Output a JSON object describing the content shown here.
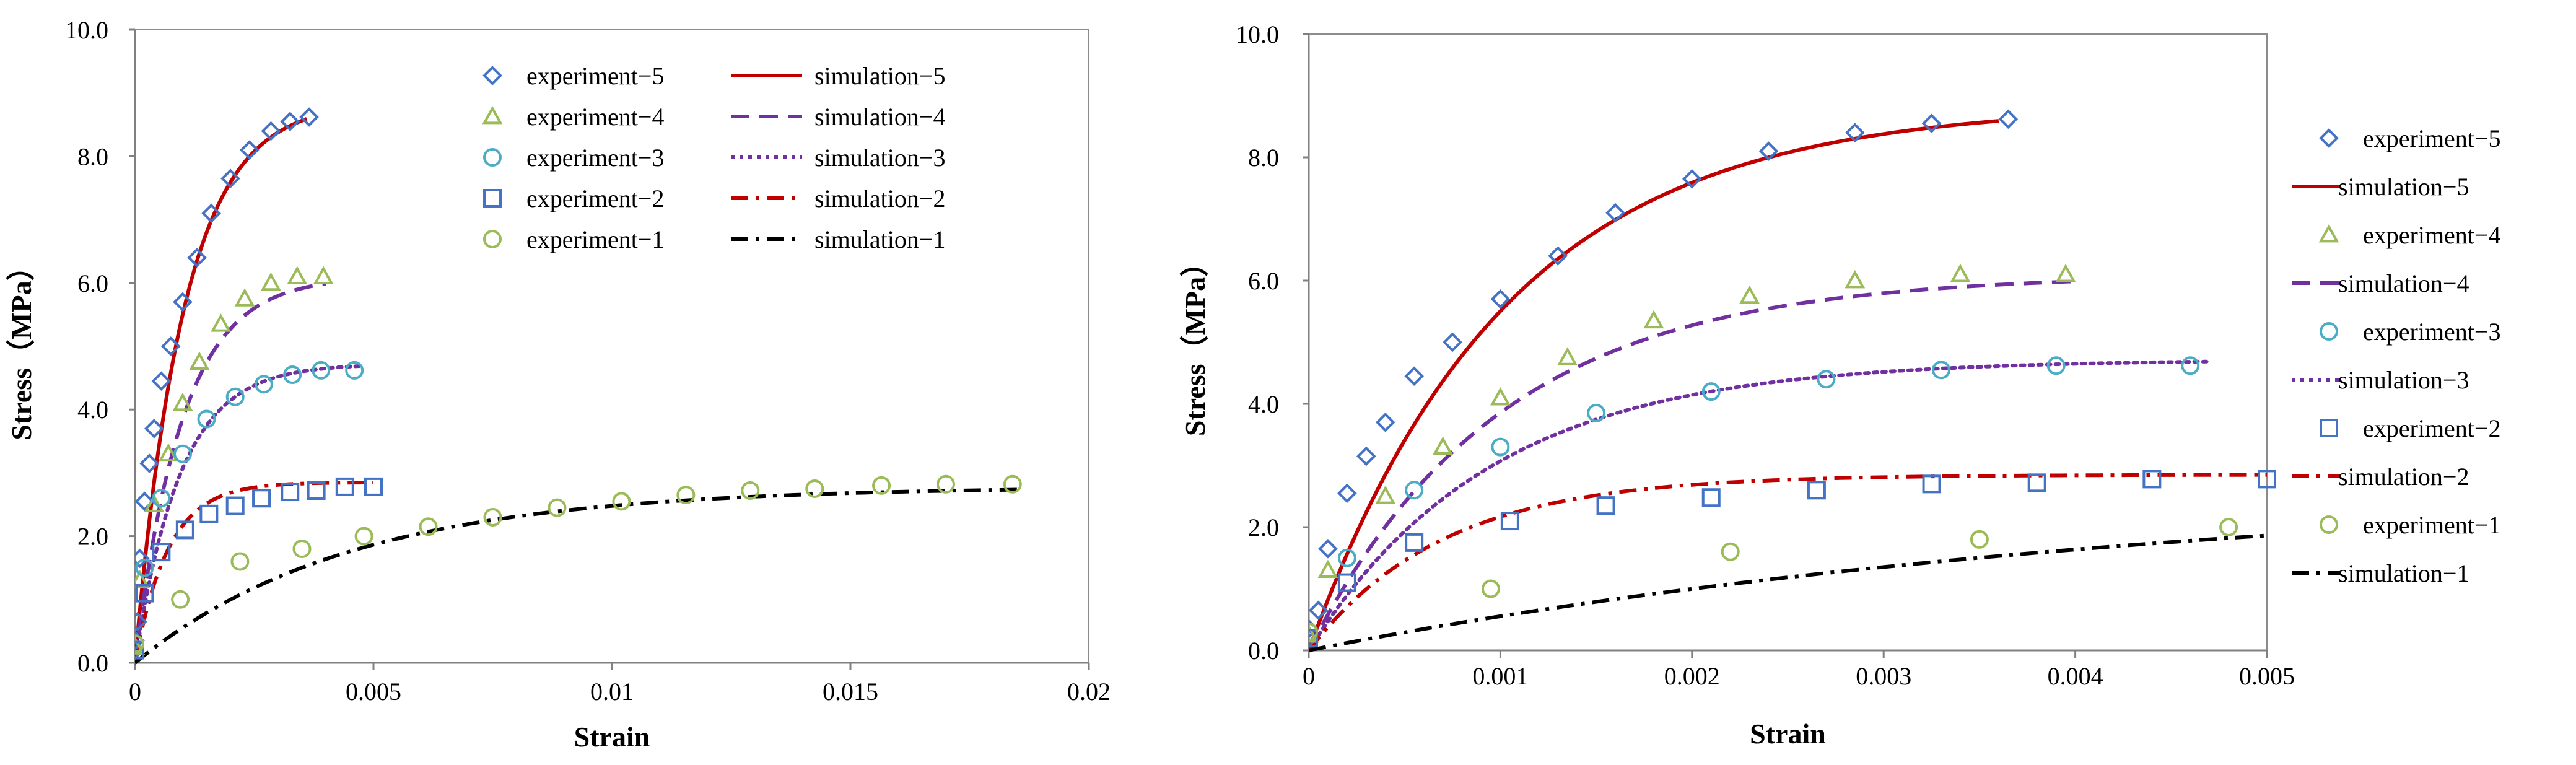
{
  "chart_data": [
    {
      "type": "scatter",
      "name": "full-range",
      "xlabel": "Strain",
      "ylabel": "Stress（MPa）",
      "xlim": [
        0,
        0.02
      ],
      "ylim": [
        0,
        10
      ],
      "xticks": [
        0,
        0.005,
        0.01,
        0.015,
        0.02
      ],
      "xtick_labels": [
        "0",
        "0.005",
        "0.01",
        "0.015",
        "0.02"
      ],
      "yticks": [
        0,
        2,
        4,
        6,
        8,
        10
      ],
      "ytick_labels": [
        "0.0",
        "2.0",
        "4.0",
        "6.0",
        "8.0",
        "10.0"
      ],
      "legend_position": "top-right, two columns",
      "legend_order": [
        "experiment−5",
        "simulation−5",
        "experiment−4",
        "simulation−4",
        "experiment−3",
        "simulation−3",
        "experiment−2",
        "simulation−2",
        "experiment−1",
        "simulation−1"
      ],
      "grid": false
    },
    {
      "type": "scatter",
      "name": "zoomed",
      "xlabel": "Strain",
      "ylabel": "Stress（MPa）",
      "xlim": [
        0,
        0.005
      ],
      "ylim": [
        0,
        10
      ],
      "xticks": [
        0,
        0.001,
        0.002,
        0.003,
        0.004,
        0.005
      ],
      "xtick_labels": [
        "0",
        "0.001",
        "0.002",
        "0.003",
        "0.004",
        "0.005"
      ],
      "yticks": [
        0,
        2,
        4,
        6,
        8,
        10
      ],
      "ytick_labels": [
        "0.0",
        "2.0",
        "4.0",
        "6.0",
        "8.0",
        "10.0"
      ],
      "legend_position": "right, outside plot",
      "legend_order": [
        "experiment−5",
        "simulation−5",
        "experiment−4",
        "simulation−4",
        "experiment−3",
        "simulation−3",
        "experiment−2",
        "simulation−2",
        "experiment−1",
        "simulation−1"
      ],
      "grid": false
    }
  ],
  "series": {
    "experiment": [
      {
        "name": "experiment−5",
        "marker": "diamond",
        "color": "#4472C4",
        "points": [
          [
            0.0,
            0.2
          ],
          [
            0.0,
            0.35
          ],
          [
            5e-05,
            0.65
          ],
          [
            0.0001,
            1.65
          ],
          [
            0.0002,
            2.55
          ],
          [
            0.0003,
            3.15
          ],
          [
            0.0004,
            3.7
          ],
          [
            0.00055,
            4.45
          ],
          [
            0.00075,
            5.0
          ],
          [
            0.001,
            5.7
          ],
          [
            0.0013,
            6.4
          ],
          [
            0.0016,
            7.1
          ],
          [
            0.002,
            7.65
          ],
          [
            0.0024,
            8.1
          ],
          [
            0.00285,
            8.4
          ],
          [
            0.00325,
            8.55
          ],
          [
            0.00365,
            8.62
          ]
        ]
      },
      {
        "name": "experiment−4",
        "marker": "triangle",
        "color": "#9BBB59",
        "points": [
          [
            0.0,
            0.25
          ],
          [
            0.0001,
            1.3
          ],
          [
            0.0004,
            2.5
          ],
          [
            0.0007,
            3.3
          ],
          [
            0.001,
            4.1
          ],
          [
            0.00135,
            4.75
          ],
          [
            0.0018,
            5.35
          ],
          [
            0.0023,
            5.75
          ],
          [
            0.00285,
            6.0
          ],
          [
            0.0034,
            6.1
          ],
          [
            0.00395,
            6.1
          ]
        ]
      },
      {
        "name": "experiment−3",
        "marker": "circle",
        "color": "#4BACC6",
        "points": [
          [
            0.0,
            0.3
          ],
          [
            0.0002,
            1.5
          ],
          [
            0.00055,
            2.6
          ],
          [
            0.001,
            3.3
          ],
          [
            0.0015,
            3.85
          ],
          [
            0.0021,
            4.2
          ],
          [
            0.0027,
            4.4
          ],
          [
            0.0033,
            4.55
          ],
          [
            0.0039,
            4.62
          ],
          [
            0.0046,
            4.62
          ]
        ]
      },
      {
        "name": "experiment−2",
        "marker": "square",
        "color": "#4472C4",
        "points": [
          [
            0.0,
            0.2
          ],
          [
            0.0002,
            1.1
          ],
          [
            0.00055,
            1.75
          ],
          [
            0.00105,
            2.1
          ],
          [
            0.00155,
            2.35
          ],
          [
            0.0021,
            2.48
          ],
          [
            0.00265,
            2.6
          ],
          [
            0.00325,
            2.7
          ],
          [
            0.0038,
            2.72
          ],
          [
            0.0044,
            2.78
          ],
          [
            0.005,
            2.78
          ]
        ]
      },
      {
        "name": "experiment−1",
        "marker": "circle",
        "color": "#9BBB59",
        "points": [
          [
            0.0,
            0.3
          ],
          [
            0.00095,
            1.0
          ],
          [
            0.0022,
            1.6
          ],
          [
            0.0035,
            1.8
          ],
          [
            0.0048,
            2.0
          ],
          [
            0.00615,
            2.15
          ],
          [
            0.0075,
            2.3
          ],
          [
            0.00885,
            2.45
          ],
          [
            0.0102,
            2.55
          ],
          [
            0.01155,
            2.65
          ],
          [
            0.0129,
            2.72
          ],
          [
            0.01425,
            2.75
          ],
          [
            0.01565,
            2.8
          ],
          [
            0.017,
            2.82
          ],
          [
            0.0184,
            2.82
          ]
        ]
      }
    ],
    "simulation": [
      {
        "name": "simulation−5",
        "dash": "solid",
        "color": "#C00000",
        "max_strain": 0.0036,
        "a": 8.86,
        "b": 0.00103
      },
      {
        "name": "simulation−4",
        "dash": "dashed",
        "color": "#7030A0",
        "max_strain": 0.004,
        "a": 6.1,
        "b": 0.001
      },
      {
        "name": "simulation−3",
        "dash": "dotted",
        "color": "#7030A0",
        "max_strain": 0.0047,
        "a": 4.72,
        "b": 0.00095
      },
      {
        "name": "simulation−2",
        "dash": "dashdot",
        "color": "#C00000",
        "max_strain": 0.005,
        "a": 2.85,
        "b": 0.0007
      },
      {
        "name": "simulation−1",
        "dash": "dashdot",
        "color": "#000000",
        "max_strain": 0.0185,
        "a": 2.78,
        "b": 0.0045
      }
    ]
  }
}
